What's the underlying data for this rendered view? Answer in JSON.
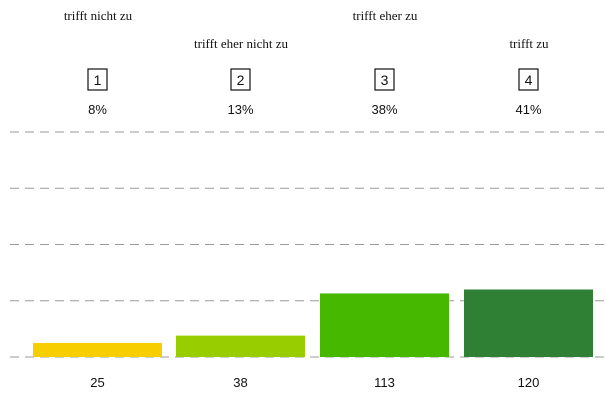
{
  "chart_data": {
    "type": "bar",
    "categories": [
      "1",
      "2",
      "3",
      "4"
    ],
    "scale_labels": [
      "trifft nicht zu",
      "trifft eher nicht zu",
      "trifft eher zu",
      "trifft zu"
    ],
    "percentages": [
      "8%",
      "13%",
      "38%",
      "41%"
    ],
    "values": [
      25,
      38,
      113,
      120
    ],
    "colors": [
      "#f7cf00",
      "#98cd00",
      "#47b800",
      "#2f7f35"
    ],
    "ylim": [
      0,
      400
    ],
    "grid": true
  }
}
